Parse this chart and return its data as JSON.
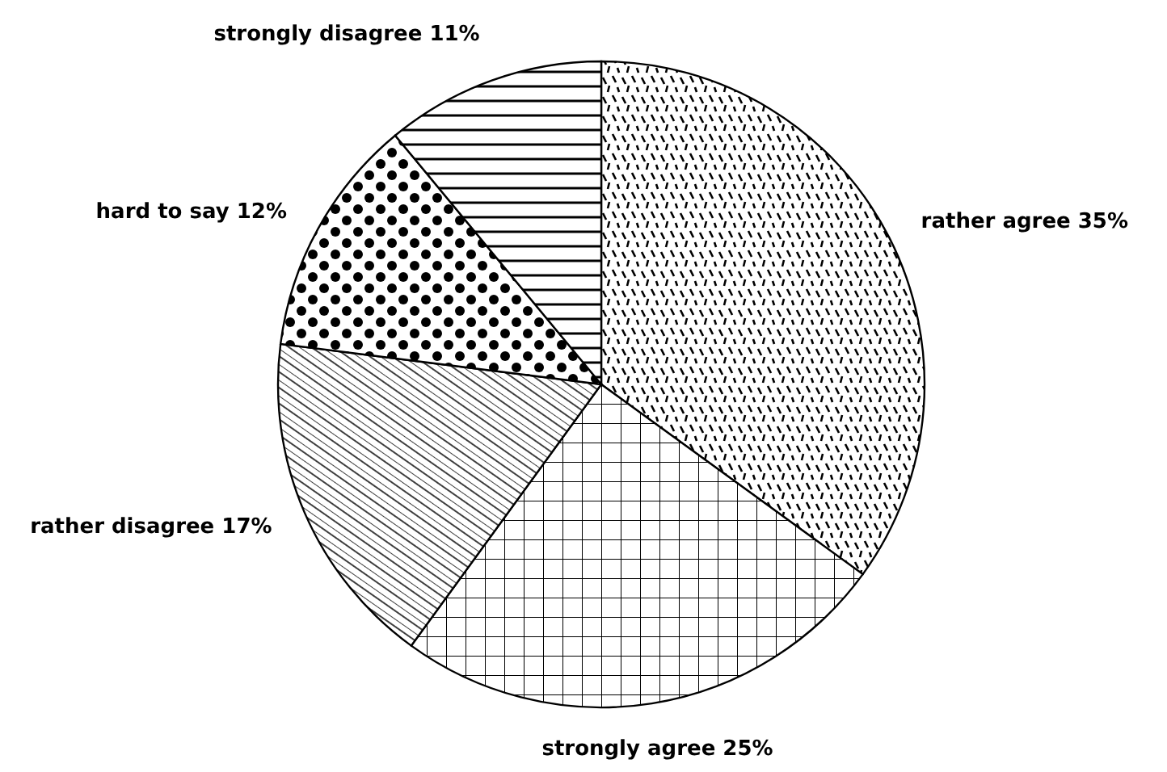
{
  "chart_data": {
    "type": "pie",
    "categories": [
      "rather agree",
      "strongly agree",
      "rather disagree",
      "hard to say",
      "strongly disagree"
    ],
    "values": [
      35,
      25,
      17,
      12,
      11
    ],
    "value_labels": [
      "35%",
      "25%",
      "17%",
      "12%",
      "11%"
    ],
    "colors": [
      "#000000",
      "#000000",
      "#000000",
      "#000000",
      "#000000"
    ],
    "data_labels": true
  }
}
